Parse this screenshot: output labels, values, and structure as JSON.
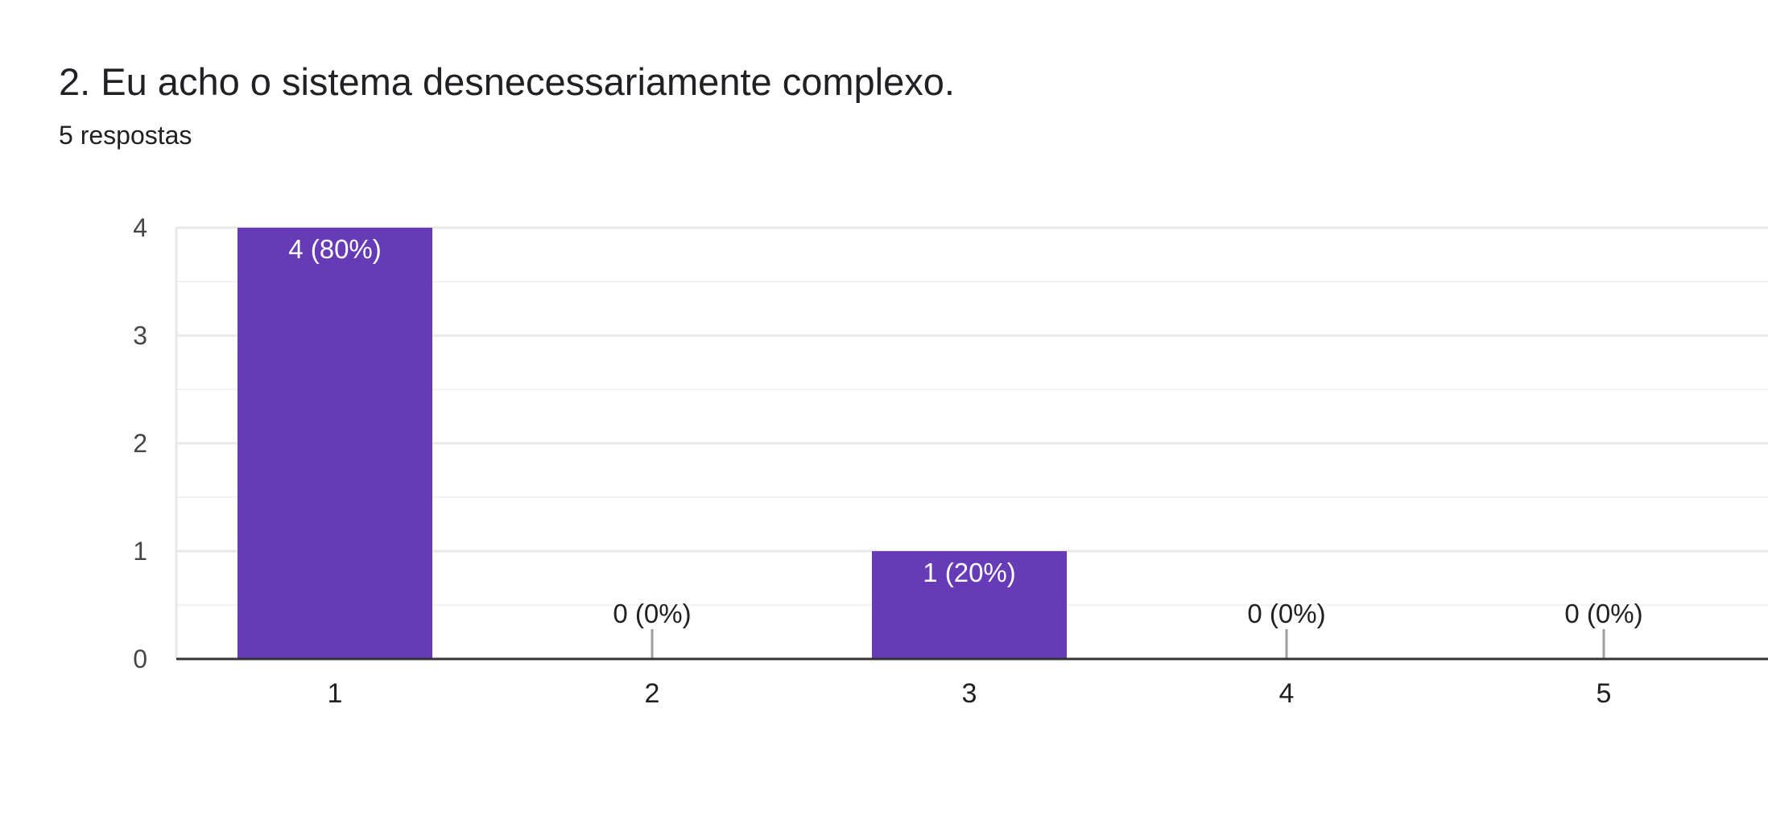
{
  "header": {
    "title": "2. Eu acho o sistema desnecessariamente complexo.",
    "response_count": "5 respostas"
  },
  "colors": {
    "bar": "#673ab7",
    "grid_major": "#e8e8e8",
    "grid_minor": "#f3f3f3",
    "axis": "#333333",
    "zero_marker": "#9e9e9e"
  },
  "chart_data": {
    "type": "bar",
    "title": "2. Eu acho o sistema desnecessariamente complexo.",
    "xlabel": "",
    "ylabel": "",
    "categories": [
      "1",
      "2",
      "3",
      "4",
      "5"
    ],
    "values": [
      4,
      0,
      1,
      0,
      0
    ],
    "data_labels": [
      "4 (80%)",
      "0 (0%)",
      "1 (20%)",
      "0 (0%)",
      "0 (0%)"
    ],
    "ylim": [
      0,
      4
    ],
    "yticks": [
      "0",
      "1",
      "2",
      "3",
      "4"
    ],
    "grid": true,
    "legend": "none"
  }
}
